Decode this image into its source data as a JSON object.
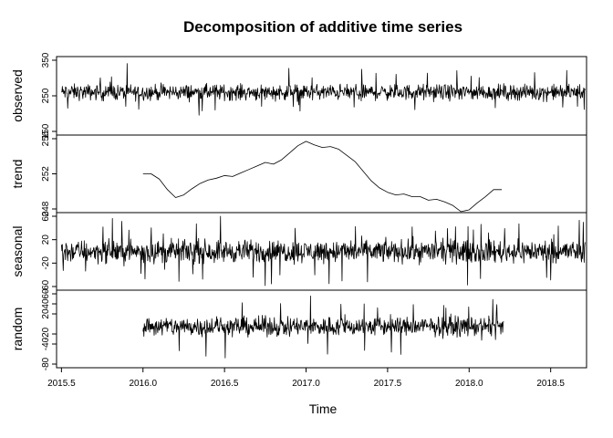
{
  "chart_data": {
    "type": "line",
    "title": "Decomposition of additive time series",
    "xlabel": "Time",
    "xlim": [
      2015.47,
      2018.72
    ],
    "x_ticks": [
      "2015.5",
      "2016.0",
      "2016.5",
      "2017.0",
      "2017.5",
      "2018.0",
      "2018.5"
    ],
    "panels": [
      {
        "name": "observed",
        "ylabel": "observed",
        "ylim": [
          150,
          350
        ],
        "y_ticks": [
          "150",
          "250",
          "350"
        ],
        "x_start": 2015.5,
        "x_end": 2018.71,
        "series_style": "noisy",
        "level": 260,
        "amplitude": 32,
        "x": [],
        "values": []
      },
      {
        "name": "trend",
        "ylabel": "trend",
        "ylim": [
          248,
          256
        ],
        "y_ticks": [
          "248",
          "252",
          "256"
        ],
        "x": [
          2016.0,
          2016.05,
          2016.1,
          2016.15,
          2016.2,
          2016.25,
          2016.3,
          2016.35,
          2016.4,
          2016.45,
          2016.5,
          2016.55,
          2016.6,
          2016.65,
          2016.7,
          2016.75,
          2016.8,
          2016.85,
          2016.9,
          2016.95,
          2017.0,
          2017.05,
          2017.1,
          2017.15,
          2017.2,
          2017.25,
          2017.3,
          2017.35,
          2017.4,
          2017.45,
          2017.5,
          2017.55,
          2017.6,
          2017.65,
          2017.7,
          2017.75,
          2017.8,
          2017.85,
          2017.9,
          2017.95,
          2018.0,
          2018.05,
          2018.1,
          2018.15,
          2018.2
        ],
        "values": [
          252.0,
          252.0,
          251.4,
          250.2,
          249.3,
          249.6,
          250.3,
          250.9,
          251.3,
          251.5,
          251.8,
          251.7,
          252.1,
          252.5,
          252.9,
          253.3,
          253.1,
          253.6,
          254.4,
          255.2,
          255.7,
          255.3,
          255.0,
          255.1,
          254.8,
          254.1,
          253.4,
          252.3,
          251.2,
          250.4,
          249.9,
          249.6,
          249.7,
          249.4,
          249.4,
          249.0,
          249.1,
          248.8,
          248.4,
          247.7,
          247.9,
          248.7,
          249.4,
          250.2,
          250.2
        ]
      },
      {
        "name": "seasonal",
        "ylabel": "seasonal",
        "ylim": [
          -60,
          60
        ],
        "y_ticks": [
          "-60",
          "-20",
          "20",
          "60"
        ],
        "x_start": 2015.5,
        "x_end": 2018.71,
        "series_style": "noisy",
        "level": 0,
        "amplitude": 28,
        "x": [],
        "values": []
      },
      {
        "name": "random",
        "ylabel": "random",
        "ylim": [
          -80,
          60
        ],
        "y_ticks": [
          "-80",
          "-40",
          "-20",
          "20",
          "40",
          "60"
        ],
        "x_start": 2016.0,
        "x_end": 2018.21,
        "series_style": "noisy",
        "level": -5,
        "amplitude": 28,
        "x": [],
        "values": []
      }
    ],
    "grid": false,
    "legend": "none"
  }
}
